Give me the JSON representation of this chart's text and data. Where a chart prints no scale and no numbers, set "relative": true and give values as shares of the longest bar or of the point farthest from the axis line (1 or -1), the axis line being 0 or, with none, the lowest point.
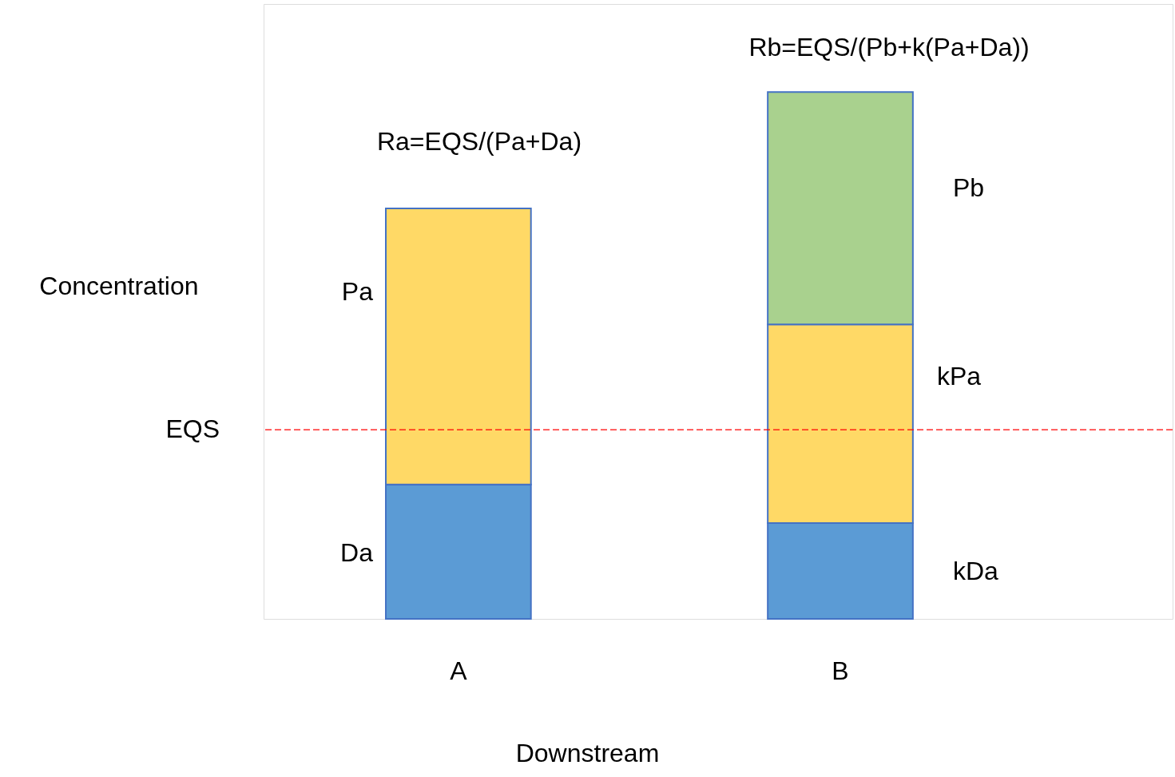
{
  "chart_data": {
    "type": "bar",
    "stacked": true,
    "relative": true,
    "xlabel": "Downstream",
    "ylabel": "Concentration",
    "categories": [
      "A",
      "B"
    ],
    "series": [
      {
        "color": "#5b9bd5",
        "values": [
          0.255,
          0.182
        ]
      },
      {
        "color": "#ffd966",
        "values": [
          0.524,
          0.377
        ]
      },
      {
        "color": "#a9d18e",
        "values": [
          null,
          0.441
        ]
      }
    ],
    "ref_lines": [
      {
        "axis": "y",
        "value": 0.359,
        "label": "EQS",
        "color": "#ff0000",
        "line_style": "dashed"
      }
    ],
    "annotations": [
      "Ra=EQS/(Pa+Da)",
      "Rb=EQS/(Pb+k(Pa+Da))",
      "Pa",
      "Da",
      "Pb",
      "kPa",
      "kDa"
    ]
  }
}
